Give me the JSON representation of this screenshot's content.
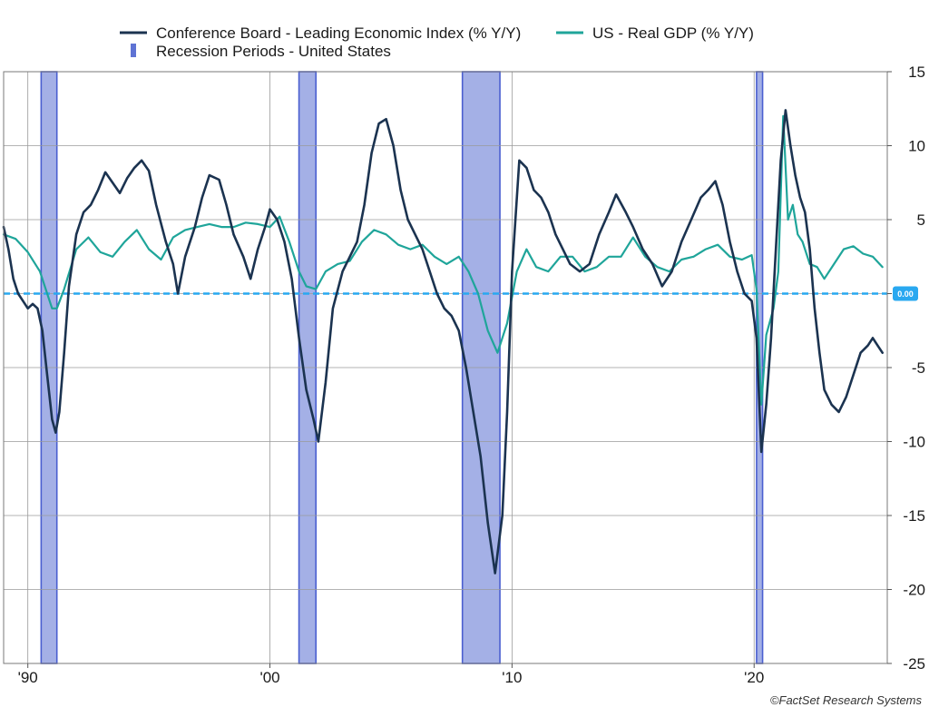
{
  "chart_data": {
    "type": "line",
    "title": "",
    "xlabel": "",
    "ylabel": "",
    "x_range": [
      1989.0,
      2025.5
    ],
    "ylim": [
      -25,
      15
    ],
    "y_ticks": [
      15,
      10,
      5,
      0,
      -5,
      -10,
      -15,
      -20,
      -25
    ],
    "y_tick_labels": [
      "15",
      "10",
      "5",
      "",
      "-5",
      "-10",
      "-15",
      "-20",
      "-25"
    ],
    "x_ticks": [
      1990,
      2000,
      2010,
      2020
    ],
    "x_tick_labels": [
      "'90",
      "'00",
      "'10",
      "'20"
    ],
    "grid": true,
    "legend_position": "top",
    "legend": [
      {
        "label": "Conference Board - Leading Economic Index (% Y/Y)",
        "color": "#1b3350",
        "kind": "line"
      },
      {
        "label": "US - Real GDP (% Y/Y)",
        "color": "#1fa59a",
        "kind": "line"
      },
      {
        "label": "Recession Periods - United States",
        "color": "#5f73d4",
        "kind": "bar"
      }
    ],
    "zero_line": {
      "value": 0,
      "label": "0.00",
      "color": "#29a8f0"
    },
    "recessions": [
      {
        "start": 1990.55,
        "end": 1991.2
      },
      {
        "start": 2001.2,
        "end": 2001.9
      },
      {
        "start": 2007.95,
        "end": 2009.5
      },
      {
        "start": 2020.1,
        "end": 2020.35
      }
    ],
    "series": [
      {
        "name": "Conference Board - Leading Economic Index (% Y/Y)",
        "color": "#1b3350",
        "x": [
          1989.0,
          1989.2,
          1989.4,
          1989.6,
          1989.8,
          1990.0,
          1990.2,
          1990.4,
          1990.6,
          1990.8,
          1991.0,
          1991.15,
          1991.3,
          1991.5,
          1991.7,
          1992.0,
          1992.3,
          1992.6,
          1992.9,
          1993.2,
          1993.5,
          1993.8,
          1994.1,
          1994.4,
          1994.7,
          1995.0,
          1995.3,
          1995.7,
          1996.0,
          1996.2,
          1996.5,
          1996.9,
          1997.2,
          1997.5,
          1997.9,
          1998.2,
          1998.5,
          1998.9,
          1999.2,
          1999.5,
          1999.8,
          2000.0,
          2000.3,
          2000.6,
          2000.9,
          2001.2,
          2001.5,
          2001.8,
          2002.0,
          2002.3,
          2002.6,
          2003.0,
          2003.3,
          2003.6,
          2003.9,
          2004.2,
          2004.5,
          2004.8,
          2005.1,
          2005.4,
          2005.7,
          2006.0,
          2006.3,
          2006.6,
          2006.9,
          2007.2,
          2007.5,
          2007.8,
          2008.1,
          2008.4,
          2008.7,
          2009.0,
          2009.3,
          2009.6,
          2009.8,
          2010.0,
          2010.3,
          2010.6,
          2010.9,
          2011.2,
          2011.5,
          2011.8,
          2012.1,
          2012.4,
          2012.8,
          2013.2,
          2013.6,
          2014.0,
          2014.3,
          2014.7,
          2015.0,
          2015.4,
          2015.8,
          2016.2,
          2016.6,
          2017.0,
          2017.4,
          2017.8,
          2018.1,
          2018.4,
          2018.7,
          2019.0,
          2019.3,
          2019.6,
          2019.9,
          2020.1,
          2020.3,
          2020.5,
          2020.7,
          2020.9,
          2021.1,
          2021.3,
          2021.5,
          2021.7,
          2021.9,
          2022.1,
          2022.3,
          2022.5,
          2022.7,
          2022.9,
          2023.2,
          2023.5,
          2023.8,
          2024.1,
          2024.4,
          2024.7,
          2024.9,
          2025.1,
          2025.3
        ],
        "values": [
          4.5,
          3.0,
          1.0,
          0.0,
          -0.5,
          -1.0,
          -0.7,
          -1.0,
          -2.5,
          -5.5,
          -8.5,
          -9.4,
          -8.0,
          -4.0,
          0.5,
          4.0,
          5.5,
          6.0,
          7.0,
          8.2,
          7.5,
          6.8,
          7.8,
          8.5,
          9.0,
          8.3,
          6.0,
          3.5,
          2.0,
          0.0,
          2.5,
          4.5,
          6.5,
          8.0,
          7.7,
          6.0,
          4.0,
          2.5,
          1.0,
          3.0,
          4.5,
          5.7,
          5.0,
          3.5,
          1.0,
          -3.0,
          -6.5,
          -8.5,
          -10.0,
          -6.0,
          -1.0,
          1.5,
          2.5,
          3.5,
          6.0,
          9.5,
          11.5,
          11.8,
          10.0,
          7.0,
          5.0,
          4.0,
          3.0,
          1.5,
          0.0,
          -1.0,
          -1.5,
          -2.5,
          -5.0,
          -8.0,
          -11.0,
          -15.5,
          -18.9,
          -15.0,
          -8.0,
          1.5,
          9.0,
          8.5,
          7.0,
          6.5,
          5.5,
          4.0,
          3.0,
          2.0,
          1.5,
          2.0,
          4.0,
          5.5,
          6.7,
          5.5,
          4.5,
          3.0,
          2.0,
          0.5,
          1.5,
          3.5,
          5.0,
          6.5,
          7.0,
          7.6,
          6.0,
          3.5,
          1.5,
          0.0,
          -0.5,
          -3.0,
          -10.7,
          -7.5,
          -3.0,
          3.0,
          9.0,
          12.4,
          10.0,
          8.0,
          6.5,
          5.5,
          3.0,
          -1.0,
          -4.0,
          -6.5,
          -7.5,
          -8.0,
          -7.0,
          -5.5,
          -4.0,
          -3.5,
          -3.0,
          -3.5,
          -4.0
        ]
      },
      {
        "name": "US - Real GDP (% Y/Y)",
        "color": "#1fa59a",
        "x": [
          1989.0,
          1989.5,
          1990.0,
          1990.5,
          1991.0,
          1991.2,
          1991.5,
          1992.0,
          1992.5,
          1993.0,
          1993.5,
          1994.0,
          1994.5,
          1995.0,
          1995.5,
          1996.0,
          1996.5,
          1997.0,
          1997.5,
          1998.0,
          1998.5,
          1999.0,
          1999.5,
          2000.0,
          2000.4,
          2000.8,
          2001.2,
          2001.5,
          2001.9,
          2002.3,
          2002.8,
          2003.3,
          2003.8,
          2004.3,
          2004.8,
          2005.3,
          2005.8,
          2006.3,
          2006.8,
          2007.3,
          2007.8,
          2008.2,
          2008.6,
          2009.0,
          2009.4,
          2009.8,
          2010.2,
          2010.6,
          2011.0,
          2011.5,
          2012.0,
          2012.5,
          2013.0,
          2013.5,
          2014.0,
          2014.5,
          2015.0,
          2015.5,
          2016.0,
          2016.5,
          2017.0,
          2017.5,
          2018.0,
          2018.5,
          2019.0,
          2019.5,
          2019.9,
          2020.1,
          2020.3,
          2020.5,
          2020.8,
          2021.0,
          2021.2,
          2021.4,
          2021.6,
          2021.8,
          2022.0,
          2022.3,
          2022.6,
          2022.9,
          2023.3,
          2023.7,
          2024.1,
          2024.5,
          2024.9,
          2025.3
        ],
        "values": [
          4.0,
          3.7,
          2.8,
          1.5,
          -1.0,
          -1.0,
          0.3,
          3.0,
          3.8,
          2.8,
          2.5,
          3.5,
          4.3,
          3.0,
          2.3,
          3.8,
          4.3,
          4.5,
          4.7,
          4.5,
          4.5,
          4.8,
          4.7,
          4.5,
          5.2,
          3.5,
          1.5,
          0.5,
          0.3,
          1.5,
          2.0,
          2.2,
          3.5,
          4.3,
          4.0,
          3.3,
          3.0,
          3.3,
          2.5,
          2.0,
          2.5,
          1.5,
          0.0,
          -2.5,
          -4.0,
          -2.0,
          1.5,
          3.0,
          1.8,
          1.5,
          2.5,
          2.5,
          1.5,
          1.8,
          2.5,
          2.5,
          3.8,
          2.5,
          1.8,
          1.5,
          2.3,
          2.5,
          3.0,
          3.3,
          2.5,
          2.3,
          2.6,
          0.3,
          -7.5,
          -2.8,
          -1.0,
          1.5,
          12.0,
          5.0,
          6.0,
          4.0,
          3.5,
          2.0,
          1.8,
          1.0,
          2.0,
          3.0,
          3.2,
          2.7,
          2.5,
          1.8
        ]
      }
    ]
  },
  "footer": {
    "credit": "©FactSet Research Systems"
  }
}
